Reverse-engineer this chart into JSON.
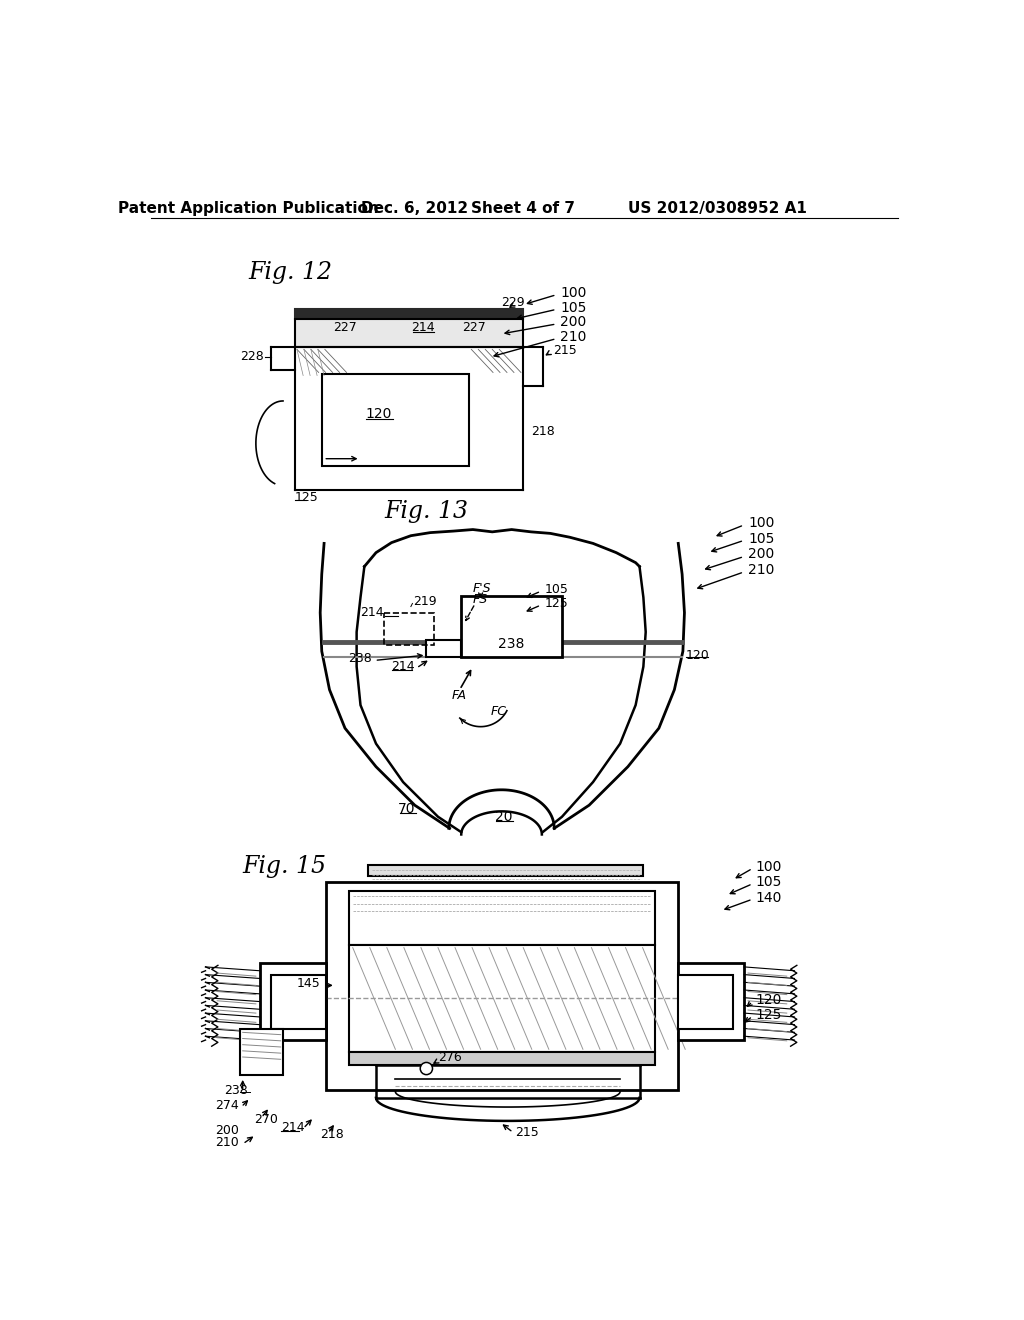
{
  "bg_color": "#ffffff",
  "header_text": "Patent Application Publication",
  "header_date": "Dec. 6, 2012",
  "header_sheet": "Sheet 4 of 7",
  "header_patent": "US 2012/0308952 A1"
}
